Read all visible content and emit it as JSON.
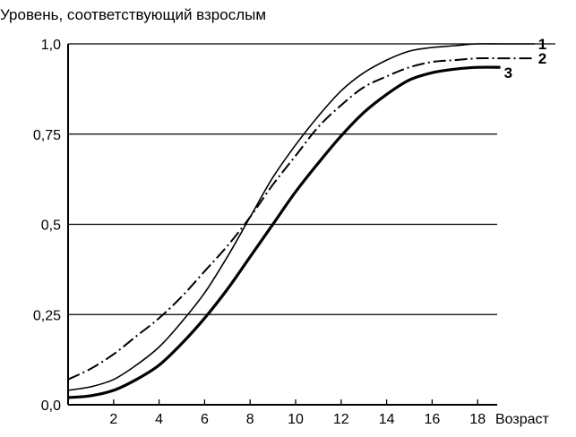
{
  "chart_data": {
    "type": "line",
    "title": "",
    "ylabel": "Уровень, соответствующий взрослым",
    "xlabel": "Возраст",
    "xlim": [
      0,
      19
    ],
    "ylim": [
      0,
      1.0
    ],
    "x_ticks": [
      2,
      4,
      6,
      8,
      10,
      12,
      14,
      16,
      18
    ],
    "y_ticks": [
      {
        "value": 0.0,
        "label": "0,0"
      },
      {
        "value": 0.25,
        "label": "0,25"
      },
      {
        "value": 0.5,
        "label": "0,5"
      },
      {
        "value": 0.75,
        "label": "0,75"
      },
      {
        "value": 1.0,
        "label": "1,0"
      }
    ],
    "grid": "horizontal",
    "series": [
      {
        "name": "1",
        "line_style": "solid-thin",
        "x": [
          0,
          1,
          2,
          3,
          4,
          5,
          6,
          7,
          8,
          9,
          10,
          11,
          12,
          13,
          14,
          15,
          16,
          17,
          18,
          19,
          20.5
        ],
        "y": [
          0.04,
          0.05,
          0.07,
          0.11,
          0.16,
          0.23,
          0.31,
          0.41,
          0.52,
          0.63,
          0.72,
          0.8,
          0.87,
          0.92,
          0.955,
          0.98,
          0.99,
          0.995,
          1.0,
          1.0,
          1.0
        ]
      },
      {
        "name": "2",
        "line_style": "dash-dot",
        "x": [
          0,
          1,
          2,
          3,
          4,
          5,
          6,
          7,
          8,
          9,
          10,
          11,
          12,
          13,
          14,
          15,
          16,
          17,
          18,
          19,
          20.5
        ],
        "y": [
          0.07,
          0.1,
          0.14,
          0.19,
          0.24,
          0.3,
          0.37,
          0.44,
          0.52,
          0.61,
          0.69,
          0.77,
          0.83,
          0.88,
          0.91,
          0.935,
          0.95,
          0.955,
          0.96,
          0.96,
          0.96
        ]
      },
      {
        "name": "3",
        "line_style": "solid-thick",
        "x": [
          0,
          1,
          2,
          3,
          4,
          5,
          6,
          7,
          8,
          9,
          10,
          11,
          12,
          13,
          14,
          15,
          16,
          17,
          18,
          19
        ],
        "y": [
          0.02,
          0.025,
          0.04,
          0.07,
          0.11,
          0.17,
          0.24,
          0.32,
          0.41,
          0.5,
          0.59,
          0.67,
          0.745,
          0.81,
          0.86,
          0.9,
          0.92,
          0.93,
          0.935,
          0.935
        ]
      }
    ]
  }
}
